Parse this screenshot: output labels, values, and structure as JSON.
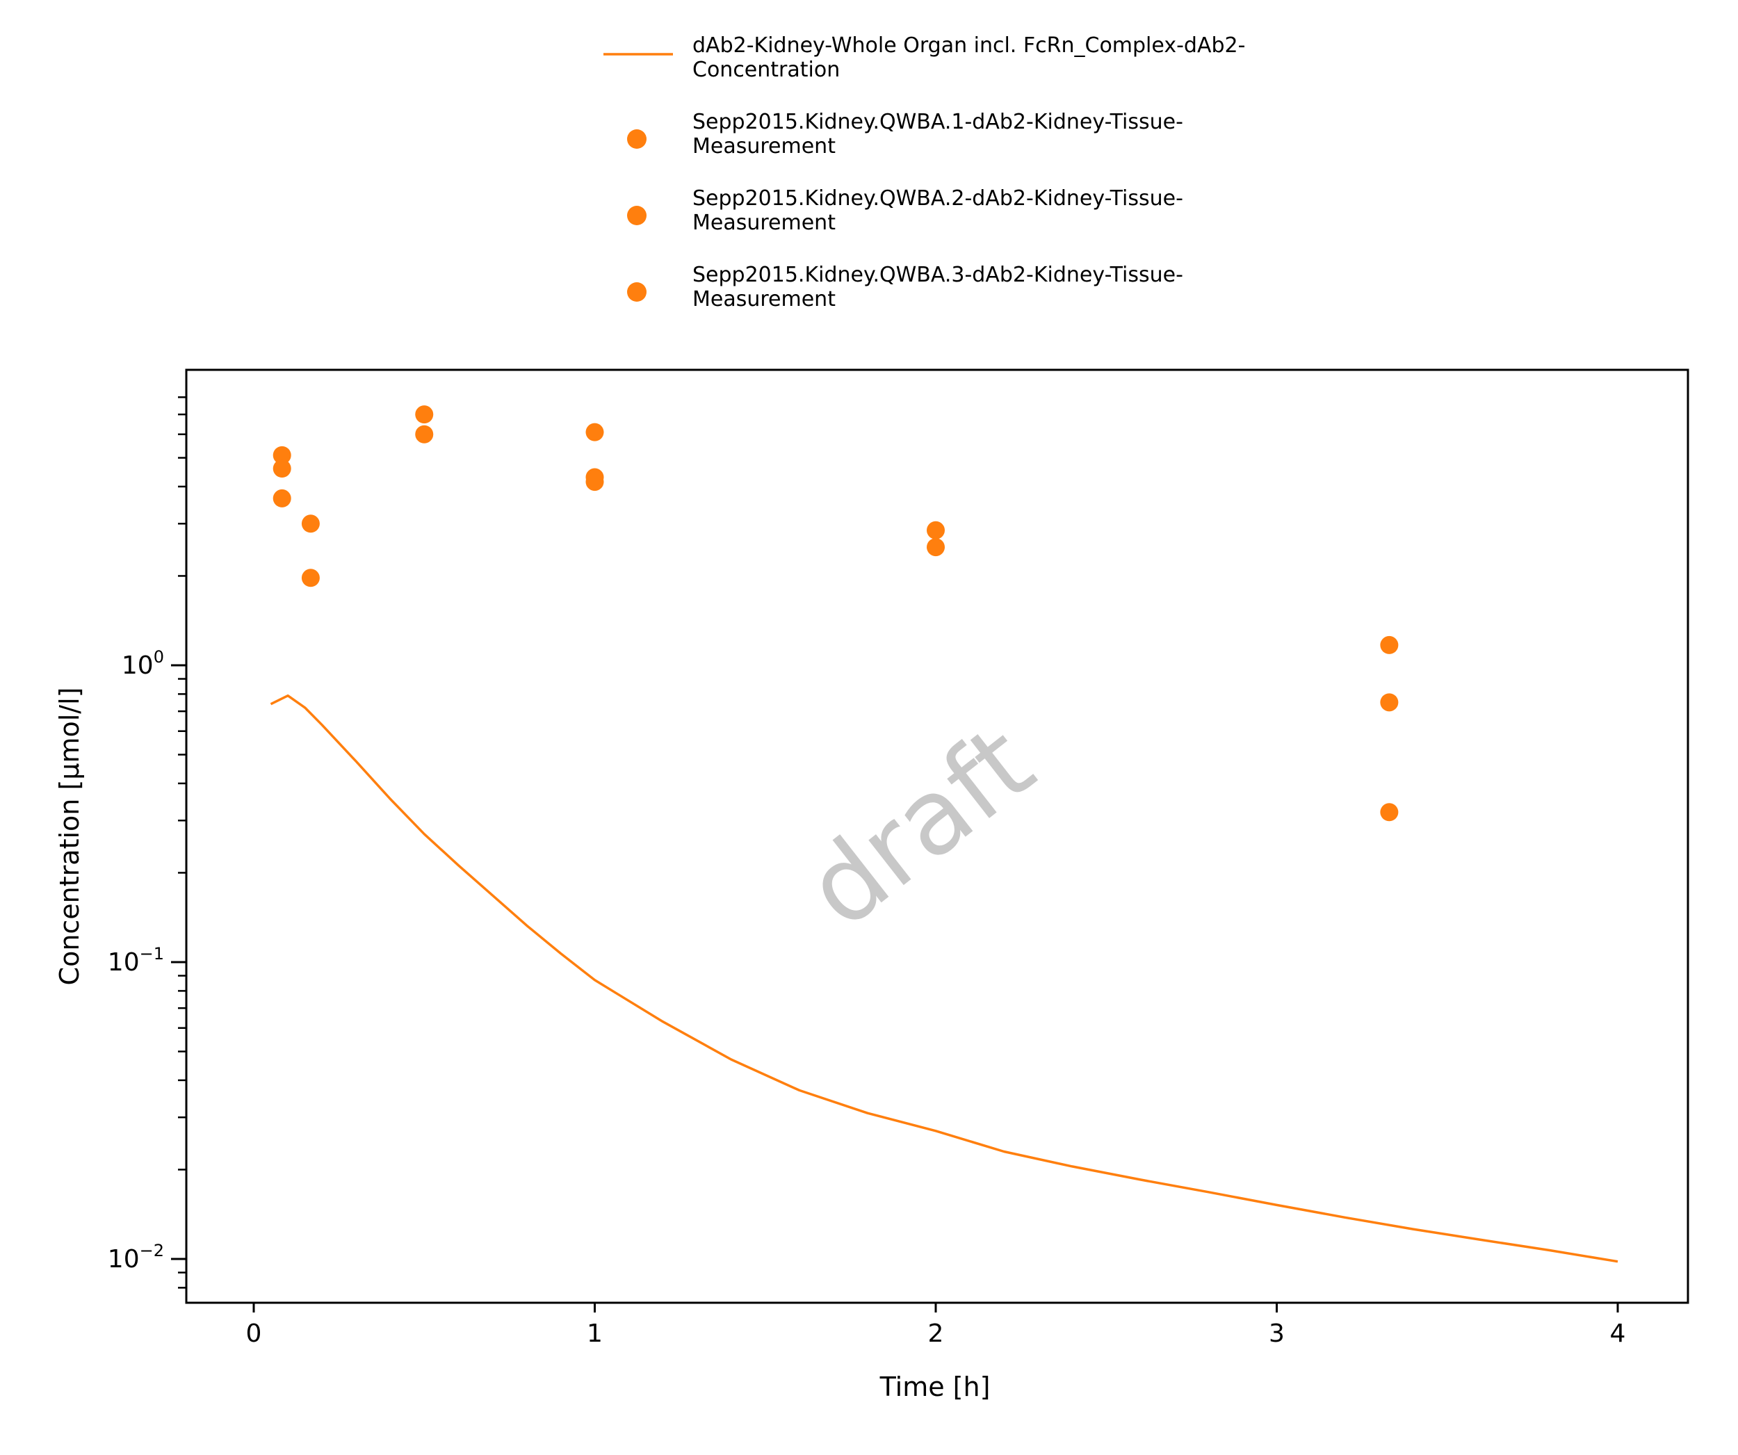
{
  "chart_data": {
    "type": "line+scatter",
    "xlabel": "Time [h]",
    "ylabel": "Concentration [µmol/l]",
    "xlim": [
      -0.2,
      4.2
    ],
    "ylim": [
      0.0079,
      8.1
    ],
    "yscale": "log",
    "xticks": [
      0,
      1,
      2,
      3,
      4
    ],
    "yticks": [
      {
        "value": 1,
        "base": "10",
        "exp": "0"
      },
      {
        "value": 0.1,
        "base": "10",
        "exp": "−1"
      },
      {
        "value": 0.01,
        "base": "10",
        "exp": "−2"
      }
    ],
    "grid": false,
    "legend_position": "top",
    "watermark": "draft",
    "colors": {
      "series": "#ff7f0e"
    },
    "series": [
      {
        "name": "dAb2-Kidney-Whole Organ incl. FcRn_Complex-dAb2-Concentration",
        "legend_lines": [
          "dAb2-Kidney-Whole Organ incl. FcRn_Complex-dAb2-",
          "Concentration"
        ],
        "kind": "line",
        "x": [
          0.05,
          0.1,
          0.15,
          0.2,
          0.3,
          0.4,
          0.5,
          0.6,
          0.7,
          0.8,
          0.9,
          1.0,
          1.2,
          1.4,
          1.6,
          1.8,
          2.0,
          2.2,
          2.4,
          2.6,
          2.8,
          3.0,
          3.2,
          3.4,
          3.6,
          3.8,
          4.0
        ],
        "y": [
          0.74,
          0.79,
          0.72,
          0.63,
          0.475,
          0.355,
          0.27,
          0.212,
          0.168,
          0.133,
          0.107,
          0.087,
          0.063,
          0.047,
          0.037,
          0.031,
          0.027,
          0.023,
          0.0205,
          0.0185,
          0.0168,
          0.0152,
          0.0138,
          0.0126,
          0.0116,
          0.0107,
          0.0098
        ]
      },
      {
        "name": "Sepp2015.Kidney.QWBA.1-dAb2-Kidney-Tissue-Measurement",
        "legend_lines": [
          "Sepp2015.Kidney.QWBA.1-dAb2-Kidney-Tissue-",
          "Measurement"
        ],
        "kind": "scatter",
        "x": [
          0.083,
          0.167,
          0.5,
          1.0,
          2.0,
          3.33
        ],
        "y": [
          5.1,
          3.0,
          7.0,
          6.1,
          2.85,
          1.17
        ]
      },
      {
        "name": "Sepp2015.Kidney.QWBA.2-dAb2-Kidney-Tissue-Measurement",
        "legend_lines": [
          "Sepp2015.Kidney.QWBA.2-dAb2-Kidney-Tissue-",
          "Measurement"
        ],
        "kind": "scatter",
        "x": [
          0.083,
          0.167,
          0.5,
          1.0,
          2.0,
          3.33
        ],
        "y": [
          4.6,
          1.97,
          6.0,
          4.3,
          2.5,
          0.75
        ]
      },
      {
        "name": "Sepp2015.Kidney.QWBA.3-dAb2-Kidney-Tissue-Measurement",
        "legend_lines": [
          "Sepp2015.Kidney.QWBA.3-dAb2-Kidney-Tissue-",
          "Measurement"
        ],
        "kind": "scatter",
        "x": [
          0.083,
          1.0,
          3.33
        ],
        "y": [
          3.65,
          4.15,
          0.32
        ]
      }
    ]
  }
}
